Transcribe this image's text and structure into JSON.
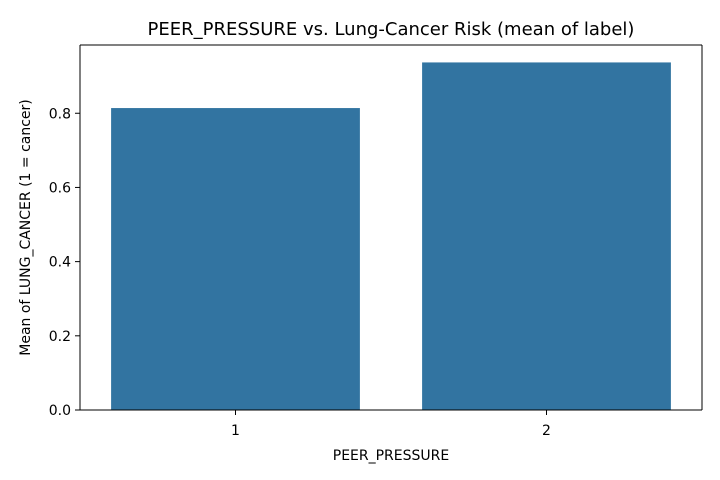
{
  "chart_data": {
    "type": "bar",
    "title": "PEER_PRESSURE vs. Lung-Cancer Risk (mean of label)",
    "xlabel": "PEER_PRESSURE",
    "ylabel": "Mean of LUNG_CANCER (1 = cancer)",
    "categories": [
      "1",
      "2"
    ],
    "values": [
      0.814,
      0.937
    ],
    "ylim": [
      0,
      0.984
    ],
    "yticks": [
      "0.0",
      "0.2",
      "0.4",
      "0.6",
      "0.8"
    ],
    "bar_color": "#3274a1",
    "grid": false,
    "legend": "none"
  }
}
